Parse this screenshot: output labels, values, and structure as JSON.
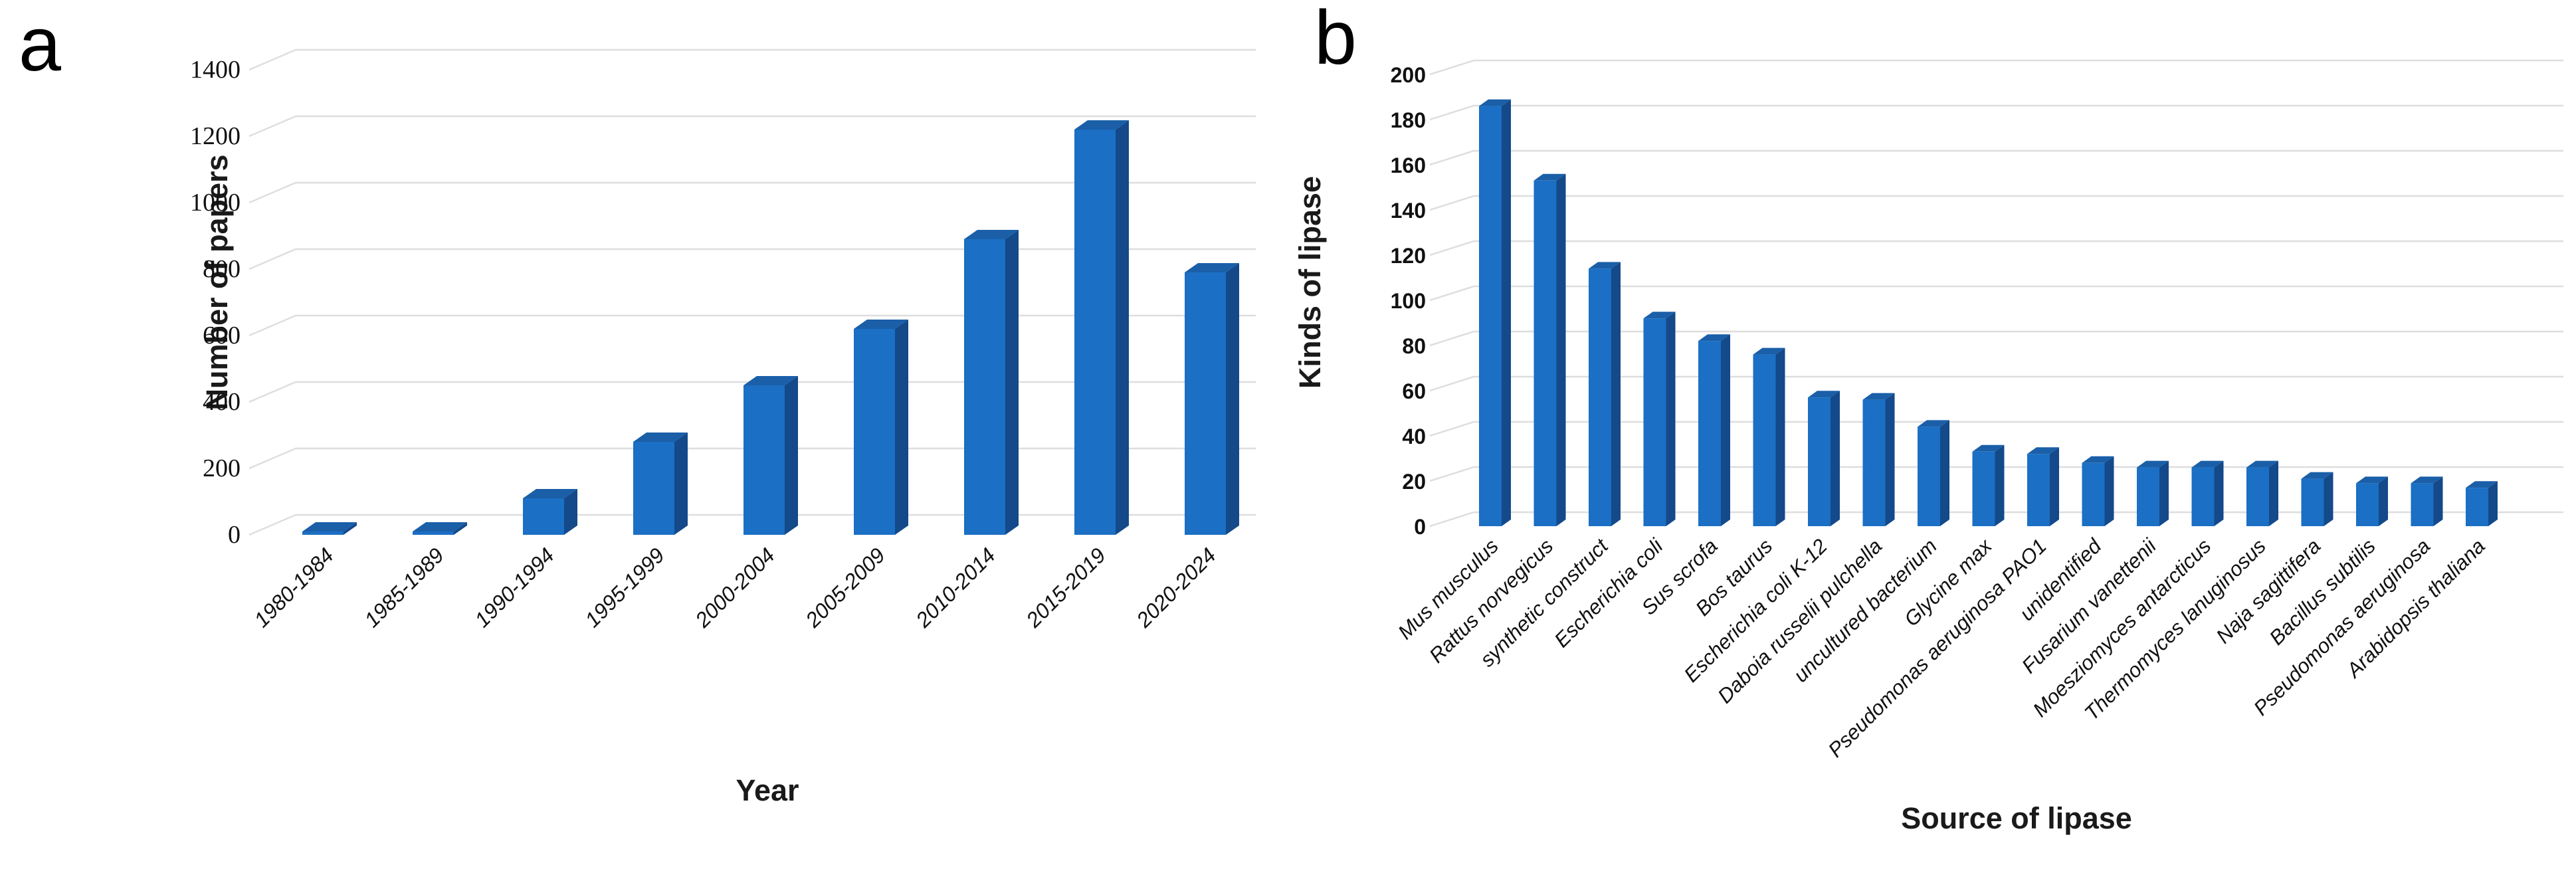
{
  "panels": {
    "a": {
      "letter": "a"
    },
    "b": {
      "letter": "b"
    }
  },
  "chart_data": [
    {
      "type": "bar",
      "panel": "a",
      "style": "3d-column",
      "title": "",
      "xlabel": "Year",
      "ylabel": "Number of papers",
      "categories": [
        "1980-1984",
        "1985-1989",
        "1990-1994",
        "1995-1999",
        "2000-2004",
        "2005-2009",
        "2010-2014",
        "2015-2019",
        "2020-2024"
      ],
      "values": [
        10,
        10,
        110,
        280,
        450,
        620,
        890,
        1220,
        790
      ],
      "ylim": [
        0,
        1400
      ],
      "yticks": [
        0,
        200,
        400,
        600,
        800,
        1000,
        1200,
        1400
      ],
      "grid": true,
      "legend": "none"
    },
    {
      "type": "bar",
      "panel": "b",
      "style": "3d-column",
      "title": "",
      "xlabel": "Source of lipase",
      "ylabel": "Kinds of lipase",
      "categories": [
        "Mus musculus",
        "Rattus norvegicus",
        "synthetic construct",
        "Escherichia coli",
        "Sus scrofa",
        "Bos taurus",
        "Escherichia coli K-12",
        "Daboia russelii pulchella",
        "uncultured bacterium",
        "Glycine max",
        "Pseudomonas aeruginosa PAO1",
        "unidentified",
        "Fusarium vanettenii",
        "Moesziomyces antarcticus",
        "Thermomyces lanuginosus",
        "Naja sagittifera",
        "Bacillus subtilis",
        "Pseudomonas aeruginosa",
        "Arabidopsis thaliana"
      ],
      "values": [
        186,
        153,
        114,
        92,
        82,
        76,
        57,
        56,
        44,
        33,
        32,
        28,
        26,
        26,
        26,
        21,
        19,
        19,
        17
      ],
      "ylim": [
        0,
        200
      ],
      "yticks": [
        0,
        20,
        40,
        60,
        80,
        100,
        120,
        140,
        160,
        180,
        200
      ],
      "grid": true,
      "legend": "none"
    }
  ],
  "colors": {
    "bar_front": "#1B6FC4",
    "bar_side": "#14498A",
    "bar_top": "#1A5FA8",
    "gridline": "#DEDEDE",
    "text": "#111111"
  }
}
